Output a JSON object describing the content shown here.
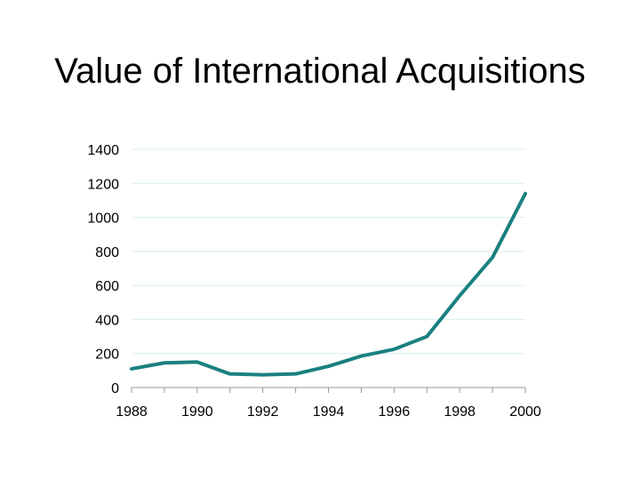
{
  "title": "Value of International Acquisitions",
  "chart_data": {
    "type": "line",
    "title": "Value of International Acquisitions",
    "xlabel": "",
    "ylabel": "",
    "x": [
      1988,
      1989,
      1990,
      1991,
      1992,
      1993,
      1994,
      1995,
      1996,
      1997,
      1998,
      1999,
      2000
    ],
    "series": [
      {
        "values": [
          110,
          145,
          150,
          80,
          75,
          80,
          125,
          185,
          225,
          300,
          540,
          765,
          1140
        ]
      }
    ],
    "xlim": [
      1988,
      2000
    ],
    "ylim": [
      0,
      1400
    ],
    "x_ticks": [
      "1988",
      "1990",
      "1992",
      "1994",
      "1996",
      "1998",
      "2000"
    ],
    "y_ticks": [
      "0",
      "200",
      "400",
      "600",
      "800",
      "1000",
      "1200",
      "1400"
    ],
    "grid": true,
    "legend": "none",
    "colors": {
      "line": "#1a8080",
      "grid": "#d8eef0",
      "axis": "#999999"
    }
  }
}
